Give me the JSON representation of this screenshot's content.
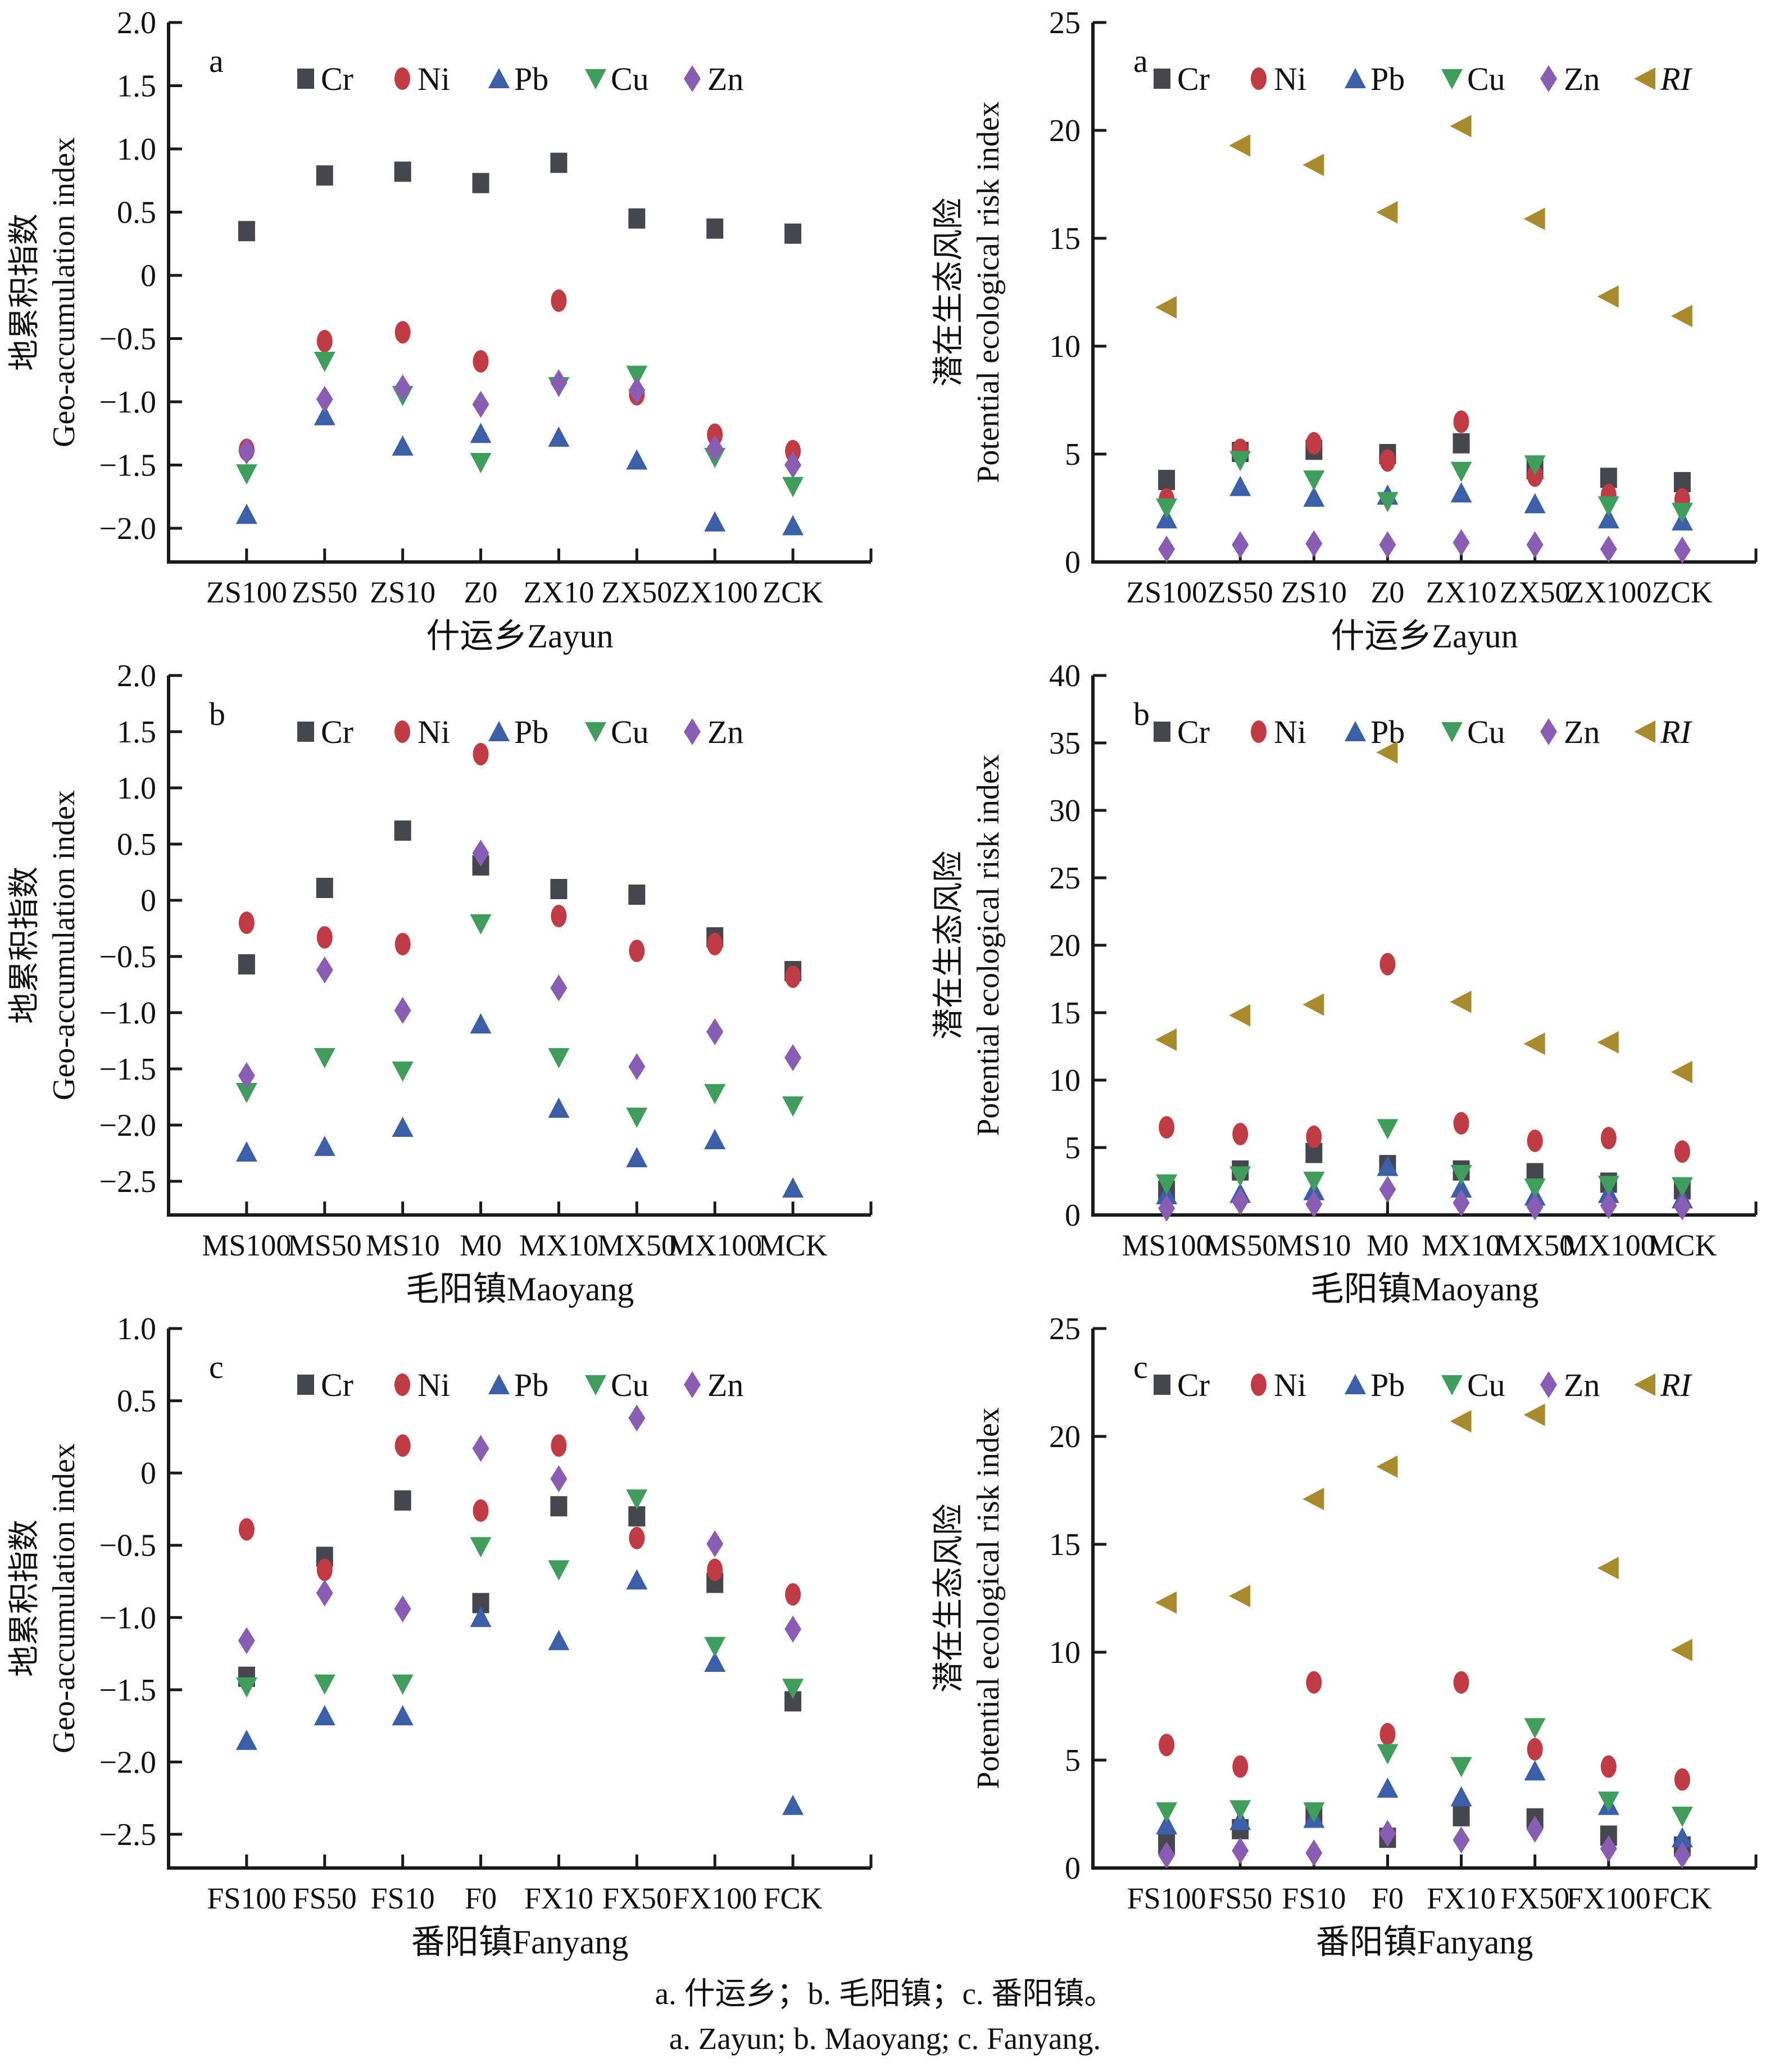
{
  "figure": {
    "caption_cn": "a. 什运乡；b. 毛阳镇；c. 番阳镇。",
    "caption_en": "a. Zayun; b. Maoyang; c. Fanyang."
  },
  "style": {
    "axis_color": "#1a1a1a",
    "text_color": "#111111",
    "series_style": {
      "Cr": {
        "marker": "square",
        "color": "#45464e"
      },
      "Ni": {
        "marker": "ellipse",
        "color": "#c13b45"
      },
      "Pb": {
        "marker": "triangle-up",
        "color": "#3b5fa9"
      },
      "Cu": {
        "marker": "triangle-down",
        "color": "#3f9e5c"
      },
      "Zn": {
        "marker": "diamond",
        "color": "#8a5db5"
      },
      "RI": {
        "marker": "triangle-left",
        "color": "#a98b2d",
        "italic": true
      }
    }
  },
  "chart_data": [
    {
      "id": "igeo-zayun",
      "type": "scatter",
      "panel_label": "a",
      "ylabel_cn": "地累积指数",
      "ylabel_en": "Geo-accumulation index",
      "xlabel": "什运乡Zayun",
      "ylim": [
        -2.0,
        2.0
      ],
      "ystep": 0.5,
      "y_decimals": 1,
      "grid": false,
      "legend_position": "top",
      "categories": [
        "ZS100",
        "ZS50",
        "ZS10",
        "Z0",
        "ZX10",
        "ZX50",
        "ZX100",
        "ZCK"
      ],
      "legend": [
        "Cr",
        "Ni",
        "Pb",
        "Cu",
        "Zn"
      ],
      "series": [
        {
          "name": "Cr",
          "values": [
            0.35,
            0.79,
            0.82,
            0.73,
            0.89,
            0.45,
            0.37,
            0.33
          ]
        },
        {
          "name": "Ni",
          "values": [
            -1.38,
            -0.52,
            -0.45,
            -0.68,
            -0.2,
            -0.94,
            -1.26,
            -1.39
          ]
        },
        {
          "name": "Pb",
          "values": [
            -1.89,
            -1.11,
            -1.35,
            -1.25,
            -1.28,
            -1.46,
            -1.95,
            -1.98
          ]
        },
        {
          "name": "Cu",
          "values": [
            -1.57,
            -0.68,
            -0.95,
            -1.48,
            -0.88,
            -0.79,
            -1.44,
            -1.67
          ]
        },
        {
          "name": "Zn",
          "values": [
            -1.39,
            -0.98,
            -0.89,
            -1.02,
            -0.85,
            -0.91,
            -1.37,
            -1.5
          ]
        }
      ]
    },
    {
      "id": "peri-zayun",
      "type": "scatter",
      "panel_label": "a",
      "ylabel_cn": "潜在生态风险",
      "ylabel_en": "Potential ecological risk index",
      "xlabel": "什运乡Zayun",
      "ylim": [
        0,
        25
      ],
      "ystep": 5,
      "y_decimals": 0,
      "grid": false,
      "legend_position": "top",
      "categories": [
        "ZS100",
        "ZS50",
        "ZS10",
        "Z0",
        "ZX10",
        "ZX50",
        "ZX100",
        "ZCK"
      ],
      "legend": [
        "Cr",
        "Ni",
        "Pb",
        "Cu",
        "Zn",
        "RI"
      ],
      "series": [
        {
          "name": "Cr",
          "values": [
            3.8,
            5.1,
            5.2,
            5.0,
            5.5,
            4.3,
            3.9,
            3.7
          ]
        },
        {
          "name": "Ni",
          "values": [
            2.9,
            5.2,
            5.5,
            4.7,
            6.5,
            4.0,
            3.1,
            2.9
          ]
        },
        {
          "name": "Pb",
          "values": [
            2.0,
            3.5,
            3.0,
            3.1,
            3.2,
            2.7,
            2.0,
            1.9
          ]
        },
        {
          "name": "Cu",
          "values": [
            2.5,
            4.7,
            3.8,
            2.8,
            4.2,
            4.5,
            2.6,
            2.3
          ]
        },
        {
          "name": "Zn",
          "values": [
            0.6,
            0.8,
            0.85,
            0.8,
            0.9,
            0.8,
            0.6,
            0.55
          ]
        },
        {
          "name": "RI",
          "values": [
            11.8,
            19.3,
            18.4,
            16.2,
            20.2,
            15.9,
            12.3,
            11.4
          ]
        }
      ]
    },
    {
      "id": "igeo-maoyang",
      "type": "scatter",
      "panel_label": "b",
      "ylabel_cn": "地累积指数",
      "ylabel_en": "Geo-accumulation index",
      "xlabel": "毛阳镇Maoyang",
      "ylim": [
        -2.5,
        2.0
      ],
      "ystep": 0.5,
      "y_decimals": 1,
      "grid": false,
      "legend_position": "top",
      "categories": [
        "MS100",
        "MS50",
        "MS10",
        "M0",
        "MX10",
        "MX50",
        "MX100",
        "MCK"
      ],
      "legend": [
        "Cr",
        "Ni",
        "Pb",
        "Cu",
        "Zn"
      ],
      "series": [
        {
          "name": "Cr",
          "values": [
            -0.57,
            0.11,
            0.62,
            0.31,
            0.1,
            0.05,
            -0.33,
            -0.63
          ]
        },
        {
          "name": "Ni",
          "values": [
            -0.2,
            -0.33,
            -0.39,
            1.3,
            -0.14,
            -0.45,
            -0.39,
            -0.68
          ]
        },
        {
          "name": "Pb",
          "values": [
            -2.24,
            -2.19,
            -2.02,
            -1.1,
            -1.85,
            -2.29,
            -2.13,
            -2.56
          ]
        },
        {
          "name": "Cu",
          "values": [
            -1.71,
            -1.4,
            -1.52,
            -0.21,
            -1.4,
            -1.93,
            -1.72,
            -1.83
          ]
        },
        {
          "name": "Zn",
          "values": [
            -1.56,
            -0.62,
            -0.98,
            0.42,
            -0.78,
            -1.48,
            -1.17,
            -1.4
          ]
        }
      ]
    },
    {
      "id": "peri-maoyang",
      "type": "scatter",
      "panel_label": "b",
      "ylabel_cn": "潜在生态风险",
      "ylabel_en": "Potential ecological risk index",
      "xlabel": "毛阳镇Maoyang",
      "ylim": [
        0,
        40
      ],
      "ystep": 5,
      "y_decimals": 0,
      "grid": false,
      "legend_position": "top",
      "categories": [
        "MS100",
        "MS50",
        "MS10",
        "M0",
        "MX10",
        "MX50",
        "MX100",
        "MCK"
      ],
      "legend": [
        "Cr",
        "Ni",
        "Pb",
        "Cu",
        "Zn",
        "RI"
      ],
      "series": [
        {
          "name": "Cr",
          "values": [
            1.8,
            3.3,
            4.6,
            3.7,
            3.3,
            3.1,
            2.4,
            1.9
          ]
        },
        {
          "name": "Ni",
          "values": [
            6.5,
            6.0,
            5.8,
            18.6,
            6.8,
            5.5,
            5.7,
            4.7
          ]
        },
        {
          "name": "Pb",
          "values": [
            1.5,
            1.6,
            1.8,
            3.6,
            2.0,
            1.4,
            1.6,
            1.2
          ]
        },
        {
          "name": "Cu",
          "values": [
            2.3,
            2.9,
            2.5,
            6.4,
            3.0,
            2.0,
            2.2,
            2.1
          ]
        },
        {
          "name": "Zn",
          "values": [
            0.5,
            1.0,
            0.8,
            1.9,
            0.9,
            0.6,
            0.7,
            0.6
          ]
        },
        {
          "name": "RI",
          "values": [
            13.0,
            14.8,
            15.6,
            34.3,
            15.8,
            12.7,
            12.8,
            10.6
          ]
        }
      ]
    },
    {
      "id": "igeo-fanyang",
      "type": "scatter",
      "panel_label": "c",
      "ylabel_cn": "地累积指数",
      "ylabel_en": "Geo-accumulation index",
      "xlabel": "番阳镇Fanyang",
      "ylim": [
        -2.5,
        1.0
      ],
      "ystep": 0.5,
      "y_decimals": 1,
      "grid": false,
      "legend_position": "top",
      "categories": [
        "FS100",
        "FS50",
        "FS10",
        "F0",
        "FX10",
        "FX50",
        "FX100",
        "FCK"
      ],
      "legend": [
        "Cr",
        "Ni",
        "Pb",
        "Cu",
        "Zn"
      ],
      "series": [
        {
          "name": "Cr",
          "values": [
            -1.41,
            -0.58,
            -0.19,
            -0.9,
            -0.23,
            -0.3,
            -0.76,
            -1.58
          ]
        },
        {
          "name": "Ni",
          "values": [
            -0.39,
            -0.67,
            0.19,
            -0.26,
            0.19,
            -0.45,
            -0.67,
            -0.84
          ]
        },
        {
          "name": "Pb",
          "values": [
            -1.85,
            -1.68,
            -1.68,
            -1.0,
            -1.16,
            -0.74,
            -1.31,
            -2.3
          ]
        },
        {
          "name": "Cu",
          "values": [
            -1.48,
            -1.46,
            -1.46,
            -0.51,
            -0.67,
            -0.18,
            -1.2,
            -1.49
          ]
        },
        {
          "name": "Zn",
          "values": [
            -1.16,
            -0.83,
            -0.94,
            0.17,
            -0.04,
            0.38,
            -0.49,
            -1.08
          ]
        }
      ]
    },
    {
      "id": "peri-fanyang",
      "type": "scatter",
      "panel_label": "c",
      "ylabel_cn": "潜在生态风险",
      "ylabel_en": "Potential ecological risk index",
      "xlabel": "番阳镇Fanyang",
      "ylim": [
        0,
        25
      ],
      "ystep": 5,
      "y_decimals": 0,
      "grid": false,
      "legend_position": "top",
      "categories": [
        "FS100",
        "FS50",
        "FS10",
        "F0",
        "FX10",
        "FX50",
        "FX100",
        "FCK"
      ],
      "legend": [
        "Cr",
        "Ni",
        "Pb",
        "Cu",
        "Zn",
        "RI"
      ],
      "series": [
        {
          "name": "Cr",
          "values": [
            1.1,
            1.8,
            2.4,
            1.4,
            2.4,
            2.3,
            1.5,
            1.0
          ]
        },
        {
          "name": "Ni",
          "values": [
            5.7,
            4.7,
            8.6,
            6.2,
            8.6,
            5.5,
            4.7,
            4.1
          ]
        },
        {
          "name": "Pb",
          "values": [
            2.0,
            2.2,
            2.3,
            3.7,
            3.3,
            4.5,
            2.9,
            1.4
          ]
        },
        {
          "name": "Cu",
          "values": [
            2.6,
            2.7,
            2.6,
            5.3,
            4.7,
            6.5,
            3.1,
            2.4
          ]
        },
        {
          "name": "Zn",
          "values": [
            0.6,
            0.8,
            0.7,
            1.6,
            1.3,
            1.8,
            0.9,
            0.6
          ]
        },
        {
          "name": "RI",
          "values": [
            12.3,
            12.6,
            17.1,
            18.6,
            20.7,
            21.0,
            13.9,
            10.1
          ]
        }
      ]
    }
  ]
}
